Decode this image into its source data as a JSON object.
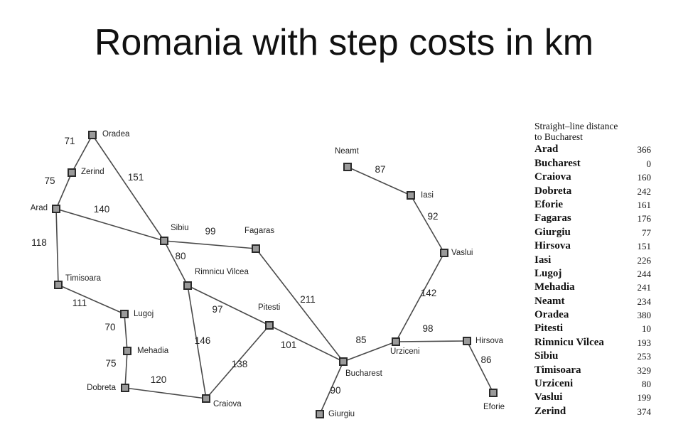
{
  "title": "Romania with step costs in km",
  "sld_table": {
    "heading_line1": "Straight–line distance",
    "heading_line2": "to Bucharest",
    "rows": [
      {
        "city": "Arad",
        "value": "366"
      },
      {
        "city": "Bucharest",
        "value": "0"
      },
      {
        "city": "Craiova",
        "value": "160"
      },
      {
        "city": "Dobreta",
        "value": "242"
      },
      {
        "city": "Eforie",
        "value": "161"
      },
      {
        "city": "Fagaras",
        "value": "176"
      },
      {
        "city": "Giurgiu",
        "value": "77"
      },
      {
        "city": "Hirsova",
        "value": "151"
      },
      {
        "city": "Iasi",
        "value": "226"
      },
      {
        "city": "Lugoj",
        "value": "244"
      },
      {
        "city": "Mehadia",
        "value": "241"
      },
      {
        "city": "Neamt",
        "value": "234"
      },
      {
        "city": "Oradea",
        "value": "380"
      },
      {
        "city": "Pitesti",
        "value": "10"
      },
      {
        "city": "Rimnicu Vilcea",
        "value": "193"
      },
      {
        "city": "Sibiu",
        "value": "253"
      },
      {
        "city": "Timisoara",
        "value": "329"
      },
      {
        "city": "Urziceni",
        "value": "80"
      },
      {
        "city": "Vaslui",
        "value": "199"
      },
      {
        "city": "Zerind",
        "value": "374"
      }
    ]
  },
  "map": {
    "cities": [
      {
        "id": "oradea",
        "label": "Oradea"
      },
      {
        "id": "zerind",
        "label": "Zerind"
      },
      {
        "id": "arad",
        "label": "Arad"
      },
      {
        "id": "timisoara",
        "label": "Timisoara"
      },
      {
        "id": "lugoj",
        "label": "Lugoj"
      },
      {
        "id": "mehadia",
        "label": "Mehadia"
      },
      {
        "id": "dobreta",
        "label": "Dobreta"
      },
      {
        "id": "sibiu",
        "label": "Sibiu"
      },
      {
        "id": "rimnicu",
        "label": "Rimnicu Vilcea"
      },
      {
        "id": "fagaras",
        "label": "Fagaras"
      },
      {
        "id": "pitesti",
        "label": "Pitesti"
      },
      {
        "id": "craiova",
        "label": "Craiova"
      },
      {
        "id": "bucharest",
        "label": "Bucharest"
      },
      {
        "id": "giurgiu",
        "label": "Giurgiu"
      },
      {
        "id": "urziceni",
        "label": "Urziceni"
      },
      {
        "id": "hirsova",
        "label": "Hirsova"
      },
      {
        "id": "eforie",
        "label": "Eforie"
      },
      {
        "id": "vaslui",
        "label": "Vaslui"
      },
      {
        "id": "iasi",
        "label": "Iasi"
      },
      {
        "id": "neamt",
        "label": "Neamt"
      }
    ],
    "roads": [
      {
        "from": "oradea",
        "to": "zerind",
        "cost": "71"
      },
      {
        "from": "zerind",
        "to": "arad",
        "cost": "75"
      },
      {
        "from": "oradea",
        "to": "sibiu",
        "cost": "151"
      },
      {
        "from": "arad",
        "to": "sibiu",
        "cost": "140"
      },
      {
        "from": "arad",
        "to": "timisoara",
        "cost": "118"
      },
      {
        "from": "timisoara",
        "to": "lugoj",
        "cost": "111"
      },
      {
        "from": "lugoj",
        "to": "mehadia",
        "cost": "70"
      },
      {
        "from": "mehadia",
        "to": "dobreta",
        "cost": "75"
      },
      {
        "from": "dobreta",
        "to": "craiova",
        "cost": "120"
      },
      {
        "from": "sibiu",
        "to": "fagaras",
        "cost": "99"
      },
      {
        "from": "sibiu",
        "to": "rimnicu",
        "cost": "80"
      },
      {
        "from": "rimnicu",
        "to": "pitesti",
        "cost": "97"
      },
      {
        "from": "rimnicu",
        "to": "craiova",
        "cost": "146"
      },
      {
        "from": "craiova",
        "to": "pitesti",
        "cost": "138"
      },
      {
        "from": "pitesti",
        "to": "bucharest",
        "cost": "101"
      },
      {
        "from": "fagaras",
        "to": "bucharest",
        "cost": "211"
      },
      {
        "from": "bucharest",
        "to": "giurgiu",
        "cost": "90"
      },
      {
        "from": "bucharest",
        "to": "urziceni",
        "cost": "85"
      },
      {
        "from": "urziceni",
        "to": "hirsova",
        "cost": "98"
      },
      {
        "from": "hirsova",
        "to": "eforie",
        "cost": "86"
      },
      {
        "from": "urziceni",
        "to": "vaslui",
        "cost": "142"
      },
      {
        "from": "vaslui",
        "to": "iasi",
        "cost": "92"
      },
      {
        "from": "iasi",
        "to": "neamt",
        "cost": "87"
      }
    ]
  }
}
